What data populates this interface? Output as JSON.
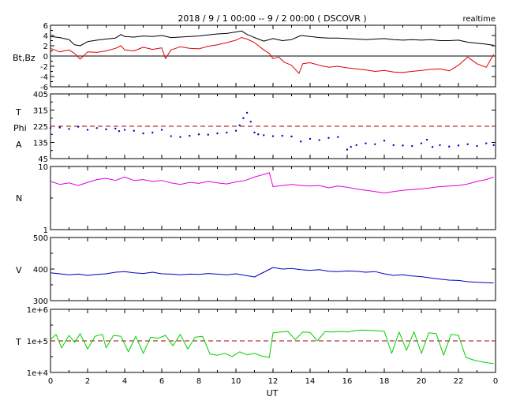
{
  "header": {
    "title": "2018 / 9 / 1   00:00 --  9 / 2   00:00 ( DSCOVR )",
    "mode": "realtime"
  },
  "x_axis": {
    "label": "UT",
    "range": [
      0,
      24
    ],
    "tick_labels": [
      "0",
      "2",
      "4",
      "6",
      "8",
      "10",
      "12",
      "14",
      "16",
      "18",
      "20",
      "22",
      "0"
    ]
  },
  "panel_labels": {
    "mag": "Bt,Bz",
    "phi_t": "T",
    "phi_p": "Phi",
    "phi_a": "A",
    "n": "N",
    "v": "V",
    "t": "T"
  },
  "colors": {
    "bt": "#000000",
    "bz": "#e00000",
    "phi": "#0000c0",
    "phi_ref": "#a00000",
    "n": "#e000e0",
    "v": "#0000c0",
    "t": "#00d000",
    "t_ref": "#a00000"
  },
  "chart_data": [
    {
      "type": "line",
      "panel": "Bt,Bz",
      "ylim": [
        -6,
        6
      ],
      "y_tick_labels": [
        "6",
        "4",
        "2",
        "0",
        "-2",
        "-4",
        "-6"
      ],
      "zero_line": true,
      "series": [
        {
          "key": "Bt",
          "x": [
            0,
            0.5,
            1,
            1.3,
            1.6,
            2,
            2.5,
            3,
            3.5,
            3.8,
            4,
            4.5,
            5,
            5.5,
            6,
            6.5,
            7,
            7.5,
            8,
            8.5,
            9,
            9.5,
            10,
            10.3,
            10.6,
            11,
            11.5,
            12,
            12.5,
            13,
            13.5,
            14,
            14.5,
            15,
            15.5,
            16,
            16.5,
            17,
            17.5,
            18,
            18.5,
            19,
            19.5,
            20,
            20.5,
            21,
            21.5,
            22,
            22.5,
            23,
            23.5,
            23.9
          ],
          "y": [
            3.8,
            3.6,
            3.2,
            2.2,
            2.0,
            2.8,
            3.1,
            3.3,
            3.5,
            4.2,
            3.8,
            3.7,
            3.9,
            3.8,
            4.0,
            3.6,
            3.7,
            3.8,
            3.9,
            4.1,
            4.3,
            4.4,
            4.7,
            4.9,
            4.2,
            3.6,
            2.9,
            3.4,
            3.0,
            3.2,
            4.0,
            3.8,
            3.6,
            3.5,
            3.5,
            3.4,
            3.3,
            3.2,
            3.3,
            3.4,
            3.2,
            3.1,
            3.2,
            3.1,
            3.2,
            3.0,
            3.0,
            3.1,
            2.7,
            2.5,
            2.3,
            2.1
          ]
        },
        {
          "key": "Bz",
          "x": [
            0,
            0.5,
            1,
            1.3,
            1.6,
            2,
            2.5,
            3,
            3.5,
            3.8,
            4,
            4.5,
            5,
            5.5,
            6,
            6.2,
            6.5,
            7,
            7.5,
            8,
            8.5,
            9,
            9.5,
            10,
            10.3,
            10.6,
            11,
            11.5,
            11.8,
            12,
            12.3,
            12.6,
            13,
            13.2,
            13.4,
            13.6,
            14,
            14.5,
            15,
            15.5,
            16,
            16.5,
            17,
            17.5,
            18,
            18.5,
            19,
            19.5,
            20,
            20.5,
            21,
            21.5,
            22,
            22.5,
            23,
            23.5,
            23.9
          ],
          "y": [
            1.5,
            0.8,
            1.2,
            0.5,
            -0.6,
            0.8,
            0.7,
            1.0,
            1.5,
            2.0,
            1.2,
            1.0,
            1.7,
            1.3,
            1.6,
            -0.5,
            1.2,
            1.8,
            1.5,
            1.4,
            1.9,
            2.2,
            2.6,
            3.1,
            3.6,
            3.3,
            2.6,
            1.2,
            0.5,
            -0.5,
            -0.2,
            -1.2,
            -1.8,
            -2.6,
            -3.4,
            -1.5,
            -1.3,
            -1.8,
            -2.2,
            -2.0,
            -2.3,
            -2.5,
            -2.7,
            -3.0,
            -2.8,
            -3.1,
            -3.2,
            -3.0,
            -2.8,
            -2.6,
            -2.5,
            -2.9,
            -1.8,
            -0.2,
            -1.5,
            -2.2,
            0.3
          ]
        }
      ]
    },
    {
      "type": "scatter",
      "panel": "T Phi A",
      "ylim": [
        45,
        405
      ],
      "y_tick_labels": [
        "405",
        "315",
        "225",
        "135",
        "45"
      ],
      "reference_line": 225,
      "series": [
        {
          "key": "Phi",
          "x": [
            0,
            0.5,
            1,
            1.5,
            2,
            2.5,
            3,
            3.5,
            3.7,
            4,
            4.5,
            5,
            5.5,
            6,
            6.5,
            7,
            7.5,
            8,
            8.5,
            9,
            9.5,
            10,
            10.2,
            10.4,
            10.6,
            10.8,
            11,
            11.2,
            11.5,
            12,
            12.5,
            13,
            13.5,
            14,
            14.5,
            15,
            15.5,
            16,
            16.2,
            16.5,
            17,
            17.5,
            18,
            18.5,
            19,
            19.5,
            20,
            20.3,
            20.6,
            21,
            21.5,
            22,
            22.5,
            23,
            23.5,
            23.9
          ],
          "y": [
            215,
            218,
            210,
            222,
            205,
            215,
            208,
            212,
            198,
            205,
            200,
            185,
            190,
            205,
            170,
            165,
            172,
            180,
            178,
            185,
            190,
            200,
            230,
            270,
            300,
            250,
            190,
            180,
            175,
            170,
            172,
            168,
            140,
            155,
            148,
            160,
            165,
            95,
            110,
            120,
            130,
            125,
            145,
            120,
            118,
            115,
            130,
            150,
            110,
            120,
            112,
            118,
            125,
            115,
            130,
            120
          ]
        }
      ]
    },
    {
      "type": "line",
      "panel": "N",
      "scale": "log",
      "ylim": [
        1,
        10
      ],
      "y_tick_labels": [
        "10",
        "1"
      ],
      "series": [
        {
          "key": "N",
          "x": [
            0,
            0.5,
            1,
            1.5,
            2,
            2.5,
            3,
            3.5,
            4,
            4.5,
            5,
            5.5,
            6,
            6.5,
            7,
            7.5,
            8,
            8.5,
            9,
            9.5,
            10,
            10.5,
            11,
            11.5,
            11.8,
            12,
            12.5,
            13,
            13.5,
            14,
            14.5,
            15,
            15.5,
            16,
            16.5,
            17,
            17.5,
            18,
            18.5,
            19,
            19.5,
            20,
            20.5,
            21,
            21.5,
            22,
            22.5,
            23,
            23.5,
            23.9
          ],
          "y": [
            5.8,
            5.2,
            5.5,
            5.0,
            5.6,
            6.2,
            6.5,
            6.0,
            6.8,
            6.0,
            6.2,
            5.8,
            6.0,
            5.5,
            5.2,
            5.6,
            5.4,
            5.8,
            5.5,
            5.3,
            5.7,
            6.0,
            6.8,
            7.5,
            8.0,
            4.8,
            5.0,
            5.2,
            5.0,
            4.9,
            5.0,
            4.6,
            4.9,
            4.7,
            4.4,
            4.2,
            4.0,
            3.8,
            4.0,
            4.2,
            4.3,
            4.4,
            4.6,
            4.8,
            4.9,
            5.0,
            5.3,
            5.8,
            6.2,
            6.8
          ]
        }
      ]
    },
    {
      "type": "line",
      "panel": "V",
      "ylim": [
        300,
        500
      ],
      "y_tick_labels": [
        "500",
        "400",
        "300"
      ],
      "series": [
        {
          "key": "V",
          "x": [
            0,
            0.5,
            1,
            1.5,
            2,
            2.5,
            3,
            3.5,
            4,
            4.5,
            5,
            5.5,
            6,
            6.5,
            7,
            7.5,
            8,
            8.5,
            9,
            9.5,
            10,
            10.5,
            11,
            11.5,
            12,
            12.5,
            13,
            13.5,
            14,
            14.5,
            15,
            15.5,
            16,
            16.5,
            17,
            17.5,
            18,
            18.5,
            19,
            19.5,
            20,
            20.5,
            21,
            21.5,
            22,
            22.5,
            23,
            23.5,
            23.9
          ],
          "y": [
            388,
            385,
            382,
            384,
            380,
            383,
            385,
            390,
            392,
            388,
            386,
            390,
            385,
            384,
            382,
            384,
            383,
            386,
            384,
            382,
            385,
            380,
            375,
            390,
            405,
            400,
            402,
            398,
            396,
            398,
            393,
            392,
            394,
            393,
            390,
            392,
            385,
            380,
            382,
            378,
            376,
            372,
            368,
            365,
            364,
            360,
            358,
            357,
            356
          ]
        }
      ]
    },
    {
      "type": "line",
      "panel": "T",
      "scale": "log",
      "ylim": [
        10000,
        1000000
      ],
      "y_tick_labels": [
        "1e+6",
        "1e+5",
        "1e+4"
      ],
      "reference_line": 100000,
      "series": [
        {
          "key": "T",
          "x": [
            0,
            0.3,
            0.6,
            1,
            1.3,
            1.6,
            2,
            2.4,
            2.8,
            3,
            3.4,
            3.8,
            4.2,
            4.6,
            5,
            5.4,
            5.8,
            6.2,
            6.6,
            7,
            7.4,
            7.8,
            8.2,
            8.6,
            9,
            9.4,
            9.8,
            10.2,
            10.6,
            11,
            11.4,
            11.8,
            12,
            12.4,
            12.8,
            13.2,
            13.6,
            14,
            14.4,
            14.8,
            15.2,
            15.6,
            16,
            16.4,
            16.8,
            17.2,
            17.6,
            18,
            18.4,
            18.8,
            19.2,
            19.6,
            20,
            20.4,
            20.8,
            21.2,
            21.6,
            22,
            22.4,
            22.8,
            23.2,
            23.6,
            23.9
          ],
          "y": [
            110000,
            160000,
            60000,
            150000,
            90000,
            170000,
            55000,
            140000,
            160000,
            60000,
            150000,
            140000,
            45000,
            140000,
            40000,
            130000,
            120000,
            150000,
            70000,
            160000,
            55000,
            130000,
            140000,
            38000,
            35000,
            40000,
            32000,
            45000,
            36000,
            40000,
            33000,
            30000,
            180000,
            190000,
            200000,
            110000,
            190000,
            185000,
            100000,
            195000,
            190000,
            200000,
            190000,
            210000,
            220000,
            215000,
            210000,
            200000,
            40000,
            190000,
            50000,
            195000,
            40000,
            180000,
            170000,
            35000,
            160000,
            150000,
            30000,
            25000,
            22000,
            20000,
            19000
          ]
        }
      ]
    }
  ]
}
